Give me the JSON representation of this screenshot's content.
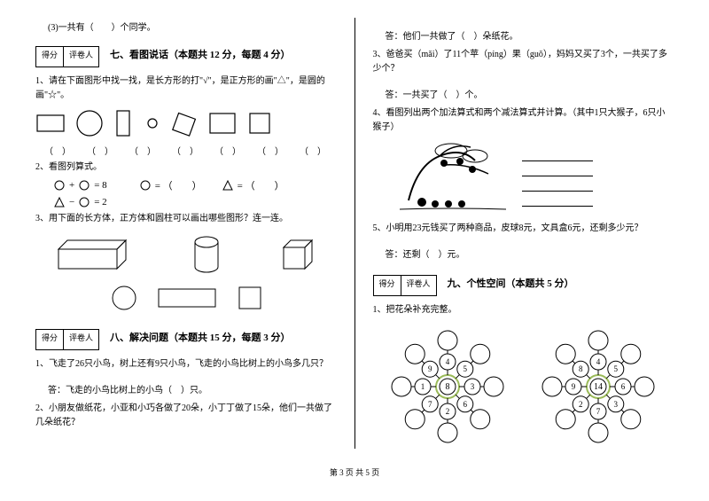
{
  "col1": {
    "q_top": "(3)一共有（　　）个同学。",
    "score_l": "得分",
    "score_r": "评卷人",
    "sec7_title": "七、看图说话（本题共 12 分，每题 4 分）",
    "q7_1": "1、请在下面图形中找一找，是长方形的打\"√\"，是正方形的画\"△\"，是圆的画\"☆\"。",
    "paren": "（　）",
    "q7_2": "2、看图列算式。",
    "eq1_rhs": "= 8",
    "eq2_rhs": "= 2",
    "eq_mid1": "= （　　）",
    "eq_mid2": "= （　　）",
    "q7_3": "3、用下面的长方体，正方体和圆柱可以画出哪些图形？连一连。",
    "sec8_title": "八、解决问题（本题共 15 分，每题 3 分）",
    "q8_1": "1、飞走了26只小鸟，树上还有9只小鸟，飞走的小鸟比树上的小鸟多几只？",
    "q8_1a": "答：飞走的小鸟比树上的小鸟（　）只。",
    "q8_2": "2、小朋友做纸花，小亚和小巧各做了20朵，小丁丁做了15朵，他们一共做了几朵纸花？"
  },
  "col2": {
    "q8_2a": "答：他们一共做了（　）朵纸花。",
    "q8_3": "3、爸爸买（mǎi）了11个苹（píng）果（guǒ），妈妈又买了3个，一共买了多少个？",
    "q8_3a": "答：一共买了（　）个。",
    "q8_4": "4、看图列出两个加法算式和两个减法算式并计算。（其中1只大猴子，6只小猴子）",
    "q8_5": "5、小明用23元钱买了两种商品，皮球8元，文具盒6元，还剩多少元？",
    "q8_5a": "答：还剩（　）元。",
    "score_l": "得分",
    "score_r": "评卷人",
    "sec9_title": "九、个性空间（本题共 5 分）",
    "q9_1": "1、把花朵补充完整。",
    "flower1_center": "8",
    "flower1_nums": [
      "4",
      "5",
      "3",
      "6",
      "2",
      "7",
      "1",
      "9",
      "8"
    ],
    "flower2_center": "14",
    "flower2_nums": [
      "4",
      "5",
      "6",
      "3",
      "7",
      "2",
      "9",
      "8"
    ]
  },
  "footer": "第 3 页 共 5 页",
  "colors": {
    "line": "#000000",
    "flower_ring": "#9bbb59"
  }
}
